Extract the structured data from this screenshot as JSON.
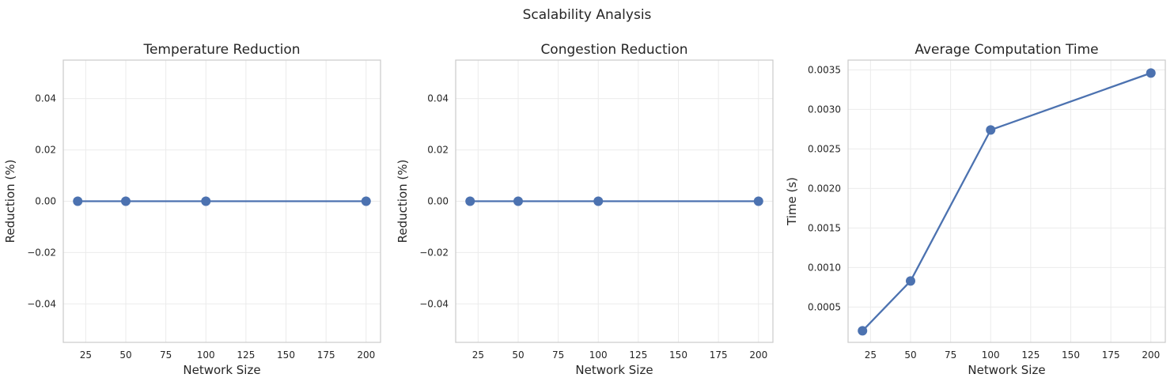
{
  "figure": {
    "suptitle": "Scalability Analysis"
  },
  "style": {
    "line_color": "#4c72b0",
    "grid_color": "#ebebeb",
    "frame_color": "#cccccc",
    "text_color": "#262626"
  },
  "chart_data": [
    {
      "type": "line",
      "title": "Temperature Reduction",
      "xlabel": "Network Size",
      "ylabel": "Reduction (%)",
      "xlim": [
        11,
        209
      ],
      "ylim": [
        -0.055,
        0.055
      ],
      "xticks": [
        25,
        50,
        75,
        100,
        125,
        150,
        175,
        200
      ],
      "xtick_labels": [
        "25",
        "50",
        "75",
        "100",
        "125",
        "150",
        "175",
        "200"
      ],
      "yticks": [
        -0.04,
        -0.02,
        0.0,
        0.02,
        0.04
      ],
      "ytick_labels": [
        "−0.04",
        "−0.02",
        "0.00",
        "0.02",
        "0.04"
      ],
      "grid": true,
      "series": [
        {
          "x": [
            20,
            50,
            100,
            200
          ],
          "y": [
            0,
            0,
            0,
            0
          ]
        }
      ]
    },
    {
      "type": "line",
      "title": "Congestion Reduction",
      "xlabel": "Network Size",
      "ylabel": "Reduction (%)",
      "xlim": [
        11,
        209
      ],
      "ylim": [
        -0.055,
        0.055
      ],
      "xticks": [
        25,
        50,
        75,
        100,
        125,
        150,
        175,
        200
      ],
      "xtick_labels": [
        "25",
        "50",
        "75",
        "100",
        "125",
        "150",
        "175",
        "200"
      ],
      "yticks": [
        -0.04,
        -0.02,
        0.0,
        0.02,
        0.04
      ],
      "ytick_labels": [
        "−0.04",
        "−0.02",
        "0.00",
        "0.02",
        "0.04"
      ],
      "grid": true,
      "series": [
        {
          "x": [
            20,
            50,
            100,
            200
          ],
          "y": [
            0,
            0,
            0,
            0
          ]
        }
      ]
    },
    {
      "type": "line",
      "title": "Average Computation Time",
      "xlabel": "Network Size",
      "ylabel": "Time (s)",
      "xlim": [
        11,
        209
      ],
      "ylim": [
        5.41e-05,
        0.0036236
      ],
      "xticks": [
        25,
        50,
        75,
        100,
        125,
        150,
        175,
        200
      ],
      "xtick_labels": [
        "25",
        "50",
        "75",
        "100",
        "125",
        "150",
        "175",
        "200"
      ],
      "yticks": [
        0.0005,
        0.001,
        0.0015,
        0.002,
        0.0025,
        0.003,
        0.0035
      ],
      "ytick_labels": [
        "0.0005",
        "0.0010",
        "0.0015",
        "0.0020",
        "0.0025",
        "0.0030",
        "0.0035"
      ],
      "grid": true,
      "series": [
        {
          "x": [
            20,
            50,
            100,
            200
          ],
          "y": [
            0.0002,
            0.00083,
            0.00274,
            0.00346
          ]
        }
      ]
    }
  ]
}
